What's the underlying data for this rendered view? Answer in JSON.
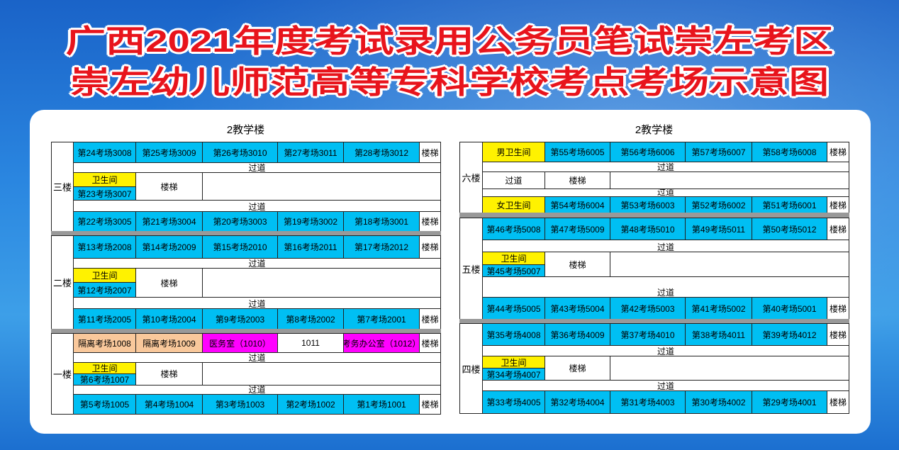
{
  "title": {
    "line1": "广西2021年度考试录用公务员笔试崇左考区",
    "line2": "崇左幼儿师范高等专科学校考点考场示意图"
  },
  "colors": {
    "title": "#e8141c",
    "room": "#00bff3",
    "toilet": "#fff200",
    "isolation": "#f9c89b",
    "medical": "#ff00ff"
  },
  "buildings": [
    {
      "heading": "2教学楼",
      "floors": [
        {
          "label": "三楼",
          "top": [
            {
              "text": "第24考场3008",
              "type": "room"
            },
            {
              "text": "第25考场3009",
              "type": "room"
            },
            {
              "text": "第26考场3010",
              "type": "room"
            },
            {
              "text": "第27考场3011",
              "type": "room"
            },
            {
              "text": "第28考场3012",
              "type": "room"
            },
            {
              "text": "楼梯",
              "type": "stairs"
            }
          ],
          "passage1": "过道",
          "middle": {
            "toilet": "卫生间",
            "room": "第23考场3007",
            "stairs": "楼梯"
          },
          "passage2": "过道",
          "bottom": [
            {
              "text": "第22考场3005",
              "type": "room"
            },
            {
              "text": "第21考场3004",
              "type": "room"
            },
            {
              "text": "第20考场3003",
              "type": "room"
            },
            {
              "text": "第19考场3002",
              "type": "room"
            },
            {
              "text": "第18考场3001",
              "type": "room"
            },
            {
              "text": "楼梯",
              "type": "stairs"
            }
          ]
        },
        {
          "label": "二楼",
          "top": [
            {
              "text": "第13考场2008",
              "type": "room"
            },
            {
              "text": "第14考场2009",
              "type": "room"
            },
            {
              "text": "第15考场2010",
              "type": "room"
            },
            {
              "text": "第16考场2011",
              "type": "room"
            },
            {
              "text": "第17考场2012",
              "type": "room"
            },
            {
              "text": "楼梯",
              "type": "stairs"
            }
          ],
          "passage1": "过道",
          "middle": {
            "toilet": "卫生间",
            "room": "第12考场2007",
            "stairs": "楼梯"
          },
          "passage2": "过道",
          "bottom": [
            {
              "text": "第11考场2005",
              "type": "room"
            },
            {
              "text": "第10考场2004",
              "type": "room"
            },
            {
              "text": "第9考场2003",
              "type": "room"
            },
            {
              "text": "第8考场2002",
              "type": "room"
            },
            {
              "text": "第7考场2001",
              "type": "room"
            },
            {
              "text": "楼梯",
              "type": "stairs"
            }
          ]
        },
        {
          "label": "一楼",
          "top": [
            {
              "text": "隔离考场1008",
              "type": "isolation"
            },
            {
              "text": "隔离考场1009",
              "type": "isolation"
            },
            {
              "text": "医务室（1010）",
              "type": "medical"
            },
            {
              "text": "1011",
              "type": "plain"
            },
            {
              "text": "考务办公室（1012）",
              "type": "medical"
            },
            {
              "text": "楼梯",
              "type": "stairs"
            }
          ],
          "passage1": "过道",
          "middle": {
            "toilet": "卫生间",
            "room": "第6考场1007",
            "stairs": "楼梯"
          },
          "passage2": "过道",
          "bottom": [
            {
              "text": "第5考场1005",
              "type": "room"
            },
            {
              "text": "第4考场1004",
              "type": "room"
            },
            {
              "text": "第3考场1003",
              "type": "room"
            },
            {
              "text": "第2考场1002",
              "type": "room"
            },
            {
              "text": "第1考场1001",
              "type": "room"
            },
            {
              "text": "楼梯",
              "type": "stairs"
            }
          ]
        }
      ]
    },
    {
      "heading": "2教学楼",
      "floors": [
        {
          "label": "六楼",
          "top": [
            {
              "text": "男卫生间",
              "type": "toilet"
            },
            {
              "text": "第55考场6005",
              "type": "room"
            },
            {
              "text": "第56考场6006",
              "type": "room"
            },
            {
              "text": "第57考场6007",
              "type": "room"
            },
            {
              "text": "第58考场6008",
              "type": "room"
            },
            {
              "text": "楼梯",
              "type": "stairs"
            }
          ],
          "passage1": "过道",
          "middle": {
            "single": "过道",
            "stairs": "楼梯"
          },
          "passage2": "过道",
          "bottom": [
            {
              "text": "女卫生间",
              "type": "toilet"
            },
            {
              "text": "第54考场6004",
              "type": "room"
            },
            {
              "text": "第53考场6003",
              "type": "room"
            },
            {
              "text": "第52考场6002",
              "type": "room"
            },
            {
              "text": "第51考场6001",
              "type": "room"
            },
            {
              "text": "楼梯",
              "type": "stairs"
            }
          ]
        },
        {
          "label": "五楼",
          "top": [
            {
              "text": "第46考场5008",
              "type": "room"
            },
            {
              "text": "第47考场5009",
              "type": "room"
            },
            {
              "text": "第48考场5010",
              "type": "room"
            },
            {
              "text": "第49考场5011",
              "type": "room"
            },
            {
              "text": "第50考场5012",
              "type": "room"
            },
            {
              "text": "楼梯",
              "type": "stairs"
            }
          ],
          "passage1": "过道",
          "middle": {
            "toilet": "卫生间",
            "room": "第45考场5007",
            "stairs": "楼梯"
          },
          "passage2": "过道",
          "bottom": [
            {
              "text": "第44考场5005",
              "type": "room"
            },
            {
              "text": "第43考场5004",
              "type": "room"
            },
            {
              "text": "第42考场5003",
              "type": "room"
            },
            {
              "text": "第41考场5002",
              "type": "room"
            },
            {
              "text": "第40考场5001",
              "type": "room"
            },
            {
              "text": "楼梯",
              "type": "stairs"
            }
          ]
        },
        {
          "label": "四楼",
          "top": [
            {
              "text": "第35考场4008",
              "type": "room"
            },
            {
              "text": "第36考场4009",
              "type": "room"
            },
            {
              "text": "第37考场4010",
              "type": "room"
            },
            {
              "text": "第38考场4011",
              "type": "room"
            },
            {
              "text": "第39考场4012",
              "type": "room"
            },
            {
              "text": "楼梯",
              "type": "stairs"
            }
          ],
          "passage1": "过道",
          "middle": {
            "toilet": "卫生间",
            "room": "第34考场4007",
            "stairs": "楼梯"
          },
          "passage2": "过道",
          "bottom": [
            {
              "text": "第33考场4005",
              "type": "room"
            },
            {
              "text": "第32考场4004",
              "type": "room"
            },
            {
              "text": "第31考场4003",
              "type": "room"
            },
            {
              "text": "第30考场4002",
              "type": "room"
            },
            {
              "text": "第29考场4001",
              "type": "room"
            },
            {
              "text": "楼梯",
              "type": "stairs"
            }
          ]
        }
      ]
    }
  ]
}
